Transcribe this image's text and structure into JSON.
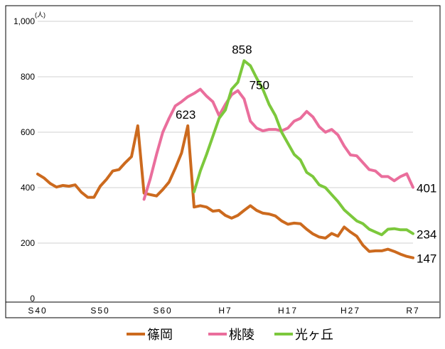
{
  "chart_data": {
    "type": "line",
    "unit_label": "(人)",
    "x_start": 1965,
    "x_end": 2025,
    "x_tick_labels": [
      "S40",
      "S50",
      "S60",
      "H7",
      "H17",
      "H27",
      "R7"
    ],
    "x_tick_years": [
      1965,
      1975,
      1985,
      1995,
      2005,
      2015,
      2025
    ],
    "y_tick_labels": [
      "0",
      "200",
      "400",
      "600",
      "800",
      "1,000"
    ],
    "y_tick_values": [
      0,
      200,
      400,
      600,
      800,
      1000
    ],
    "ylim": [
      0,
      1000
    ],
    "grid": true,
    "legend_position": "bottom",
    "series": [
      {
        "name": "篠岡",
        "color": "#cc6a1e",
        "x": [
          1965,
          1966,
          1967,
          1968,
          1969,
          1970,
          1971,
          1972,
          1973,
          1974,
          1975,
          1976,
          1977,
          1978,
          1979,
          1980,
          1981,
          1982,
          1983,
          1984,
          1985,
          1986,
          1987,
          1988,
          1989,
          1990,
          1991,
          1992,
          1993,
          1994,
          1995,
          1996,
          1997,
          1998,
          1999,
          2000,
          2001,
          2002,
          2003,
          2004,
          2005,
          2006,
          2007,
          2008,
          2009,
          2010,
          2011,
          2012,
          2013,
          2014,
          2015,
          2016,
          2017,
          2018,
          2019,
          2020,
          2021,
          2022,
          2023,
          2024,
          2025
        ],
        "values": [
          449,
          435,
          415,
          402,
          408,
          405,
          410,
          383,
          365,
          365,
          405,
          430,
          460,
          465,
          490,
          512,
          623,
          380,
          375,
          370,
          393,
          420,
          470,
          525,
          623,
          330,
          335,
          330,
          315,
          318,
          300,
          290,
          300,
          318,
          335,
          318,
          308,
          305,
          298,
          280,
          268,
          272,
          270,
          250,
          233,
          222,
          218,
          235,
          225,
          258,
          240,
          225,
          192,
          170,
          172,
          172,
          178,
          170,
          160,
          152,
          147
        ]
      },
      {
        "name": "桃陵",
        "color": "#ea6e9c",
        "x": [
          1982,
          1983,
          1984,
          1985,
          1986,
          1987,
          1988,
          1989,
          1990,
          1991,
          1992,
          1993,
          1994,
          1995,
          1996,
          1997,
          1998,
          1999,
          2000,
          2001,
          2002,
          2003,
          2004,
          2005,
          2006,
          2007,
          2008,
          2009,
          2010,
          2011,
          2012,
          2013,
          2014,
          2015,
          2016,
          2017,
          2018,
          2019,
          2020,
          2021,
          2022,
          2023,
          2024,
          2025
        ],
        "values": [
          358,
          432,
          520,
          600,
          650,
          695,
          710,
          728,
          740,
          755,
          730,
          710,
          660,
          700,
          735,
          750,
          720,
          640,
          615,
          605,
          610,
          610,
          605,
          615,
          640,
          650,
          675,
          655,
          620,
          600,
          610,
          590,
          550,
          518,
          515,
          490,
          465,
          460,
          440,
          440,
          425,
          440,
          450,
          401
        ]
      },
      {
        "name": "光ヶ丘",
        "color": "#7cc83c",
        "x": [
          1990,
          1991,
          1992,
          1993,
          1994,
          1995,
          1996,
          1997,
          1998,
          1999,
          2000,
          2001,
          2002,
          2003,
          2004,
          2005,
          2006,
          2007,
          2008,
          2009,
          2010,
          2011,
          2012,
          2013,
          2014,
          2015,
          2016,
          2017,
          2018,
          2019,
          2020,
          2021,
          2022,
          2023,
          2024,
          2025
        ],
        "values": [
          385,
          460,
          520,
          585,
          650,
          680,
          755,
          780,
          858,
          840,
          795,
          755,
          700,
          660,
          600,
          560,
          520,
          500,
          455,
          440,
          410,
          400,
          375,
          350,
          320,
          300,
          280,
          270,
          250,
          240,
          230,
          250,
          252,
          248,
          248,
          234
        ]
      }
    ],
    "data_labels": [
      {
        "text": "623",
        "x": 1989,
        "y": 623,
        "series": "篠岡"
      },
      {
        "text": "858",
        "x": 1998,
        "y": 858,
        "series": "光ヶ丘"
      },
      {
        "text": "750",
        "x": 1997,
        "y": 750,
        "series": "桃陵"
      },
      {
        "text": "401",
        "x": 2025,
        "y": 401,
        "series": "桃陵"
      },
      {
        "text": "234",
        "x": 2025,
        "y": 234,
        "series": "光ヶ丘"
      },
      {
        "text": "147",
        "x": 2025,
        "y": 147,
        "series": "篠岡"
      }
    ]
  }
}
